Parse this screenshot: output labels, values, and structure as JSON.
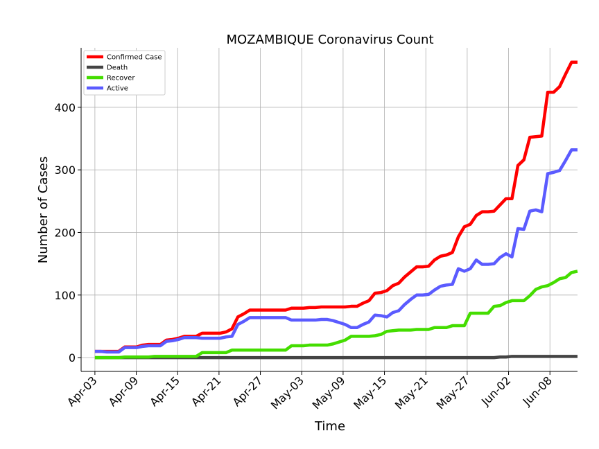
{
  "chart_data": {
    "type": "line",
    "title": "MOZAMBIQUE Coronavirus Count",
    "xlabel": "Time",
    "ylabel": "Number of Cases",
    "x_start": "2020-04-03",
    "x_end": "2020-06-11",
    "xlim": [
      "2020-04-01",
      "2020-06-12"
    ],
    "ylim": [
      -22,
      495
    ],
    "grid": true,
    "legend_position": "top-left",
    "x_ticks": [
      {
        "date": "2020-04-03",
        "label": "Apr-03"
      },
      {
        "date": "2020-04-09",
        "label": "Apr-09"
      },
      {
        "date": "2020-04-15",
        "label": "Apr-15"
      },
      {
        "date": "2020-04-21",
        "label": "Apr-21"
      },
      {
        "date": "2020-04-27",
        "label": "Apr-27"
      },
      {
        "date": "2020-05-03",
        "label": "May-03"
      },
      {
        "date": "2020-05-09",
        "label": "May-09"
      },
      {
        "date": "2020-05-15",
        "label": "May-15"
      },
      {
        "date": "2020-05-21",
        "label": "May-21"
      },
      {
        "date": "2020-05-27",
        "label": "May-27"
      },
      {
        "date": "2020-06-02",
        "label": "Jun-02"
      },
      {
        "date": "2020-06-08",
        "label": "Jun-08"
      }
    ],
    "y_ticks": [
      0,
      100,
      200,
      300,
      400
    ],
    "series": [
      {
        "name": "Confirmed Case",
        "color": "#ff0000",
        "values": [
          10,
          10,
          10,
          10,
          10,
          17,
          17,
          17,
          20,
          21,
          21,
          21,
          28,
          29,
          31,
          34,
          34,
          34,
          39,
          39,
          39,
          39,
          41,
          46,
          65,
          70,
          76,
          76,
          76,
          76,
          76,
          76,
          76,
          79,
          79,
          79,
          80,
          80,
          81,
          81,
          81,
          81,
          81,
          82,
          82,
          87,
          91,
          103,
          104,
          107,
          115,
          119,
          129,
          137,
          145,
          145,
          146,
          156,
          162,
          164,
          168,
          193,
          209,
          213,
          227,
          233,
          233,
          234,
          244,
          254,
          254,
          307,
          316,
          352,
          353,
          354,
          424,
          424,
          433,
          453,
          472,
          472
        ]
      },
      {
        "name": "Death",
        "color": "#444444",
        "values": [
          0,
          0,
          0,
          0,
          0,
          0,
          0,
          0,
          0,
          0,
          0,
          0,
          0,
          0,
          0,
          0,
          0,
          0,
          0,
          0,
          0,
          0,
          0,
          0,
          0,
          0,
          0,
          0,
          0,
          0,
          0,
          0,
          0,
          0,
          0,
          0,
          0,
          0,
          0,
          0,
          0,
          0,
          0,
          0,
          0,
          0,
          0,
          0,
          0,
          0,
          0,
          0,
          0,
          0,
          0,
          0,
          0,
          0,
          0,
          0,
          0,
          0,
          0,
          0,
          0,
          0,
          0,
          0,
          1,
          1,
          2,
          2,
          2,
          2,
          2,
          2,
          2,
          2,
          2,
          2,
          2,
          2
        ]
      },
      {
        "name": "Recover",
        "color": "#44dd00",
        "values": [
          0,
          0,
          0,
          0,
          0,
          1,
          1,
          1,
          1,
          1,
          2,
          2,
          2,
          2,
          2,
          2,
          2,
          2,
          8,
          8,
          8,
          8,
          8,
          12,
          12,
          12,
          12,
          12,
          12,
          12,
          12,
          12,
          12,
          19,
          19,
          19,
          20,
          20,
          20,
          20,
          22,
          25,
          28,
          34,
          34,
          34,
          34,
          35,
          37,
          42,
          43,
          44,
          44,
          44,
          45,
          45,
          45,
          48,
          48,
          48,
          51,
          51,
          51,
          71,
          71,
          71,
          71,
          82,
          83,
          88,
          91,
          91,
          91,
          99,
          109,
          113,
          115,
          120,
          126,
          128,
          136,
          138
        ]
      },
      {
        "name": "Active",
        "color": "#5b5bff",
        "values": [
          10,
          10,
          9,
          9,
          9,
          16,
          16,
          16,
          18,
          19,
          19,
          19,
          26,
          27,
          29,
          32,
          32,
          32,
          31,
          31,
          31,
          31,
          33,
          34,
          53,
          58,
          64,
          64,
          64,
          64,
          64,
          64,
          64,
          60,
          60,
          60,
          60,
          60,
          61,
          61,
          59,
          56,
          53,
          48,
          48,
          53,
          57,
          68,
          67,
          65,
          72,
          75,
          85,
          93,
          100,
          100,
          101,
          108,
          114,
          116,
          117,
          142,
          138,
          142,
          156,
          149,
          149,
          150,
          160,
          166,
          161,
          206,
          205,
          234,
          236,
          233,
          294,
          296,
          299,
          315,
          332,
          332
        ]
      }
    ]
  }
}
